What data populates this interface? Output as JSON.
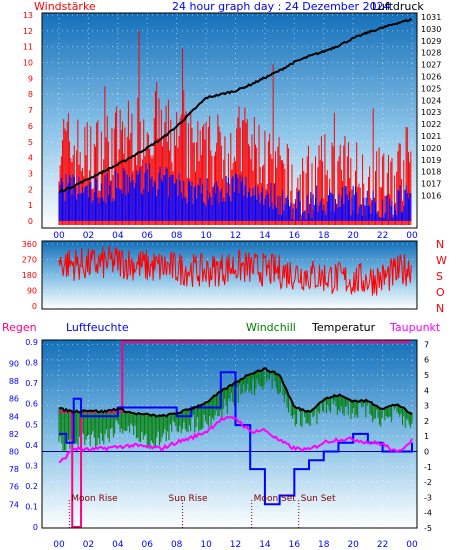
{
  "header": {
    "title": "24 hour graph day : 24 Dezember 2024",
    "wind_label": "Windstärke",
    "pressure_label": "Luftdruck"
  },
  "colors": {
    "wind": "#ff0000",
    "gust": "#0000ff",
    "pressure": "#000000",
    "temperature": "#000000",
    "windchill": "#008000",
    "dewpoint": "#ff00ff",
    "humidity": "#0000ff",
    "rain": "#ff0080",
    "axis_left": "#ff0000",
    "axis_right": "#000000",
    "axis_bottom": "#0000ff"
  },
  "chart_data": [
    {
      "type": "line",
      "panel": "wind-pressure",
      "title": "24 hour graph day : 24 Dezember 2024",
      "x_ticks": [
        "00",
        "02",
        "04",
        "06",
        "08",
        "10",
        "12",
        "14",
        "16",
        "18",
        "20",
        "22",
        "00"
      ],
      "y_left_label": "Windstärke",
      "y_left_ticks": [
        0,
        1,
        2,
        3,
        4,
        5,
        6,
        7,
        8,
        9,
        10,
        11,
        12,
        13
      ],
      "y_right_label": "Luftdruck",
      "y_right_ticks": [
        1016,
        1017,
        1018,
        1019,
        1020,
        1021,
        1022,
        1023,
        1024,
        1025,
        1026,
        1027,
        1028,
        1029,
        1030,
        1031
      ],
      "series": [
        {
          "name": "Luftdruck",
          "values_x": [
            0,
            1,
            2,
            3,
            4,
            5,
            6,
            7,
            8,
            9,
            10,
            11,
            12,
            13,
            14,
            15,
            16,
            17,
            18,
            19,
            20,
            21,
            22,
            23,
            24
          ],
          "values": [
            1016.3,
            1016.8,
            1017.4,
            1018.0,
            1018.6,
            1019.3,
            1020.0,
            1020.8,
            1021.8,
            1023.0,
            1024.2,
            1024.5,
            1024.8,
            1025.3,
            1025.9,
            1026.5,
            1027.2,
            1027.7,
            1028.1,
            1028.6,
            1029.2,
            1029.7,
            1030.1,
            1030.5,
            1030.8
          ]
        },
        {
          "name": "Windstärke",
          "values_x": [
            0,
            2,
            4,
            6,
            8,
            10,
            12,
            14,
            16,
            18,
            20,
            22,
            24
          ],
          "values": [
            5,
            4,
            5,
            6,
            5,
            4,
            5,
            4,
            2,
            3,
            3,
            2,
            4
          ]
        }
      ]
    },
    {
      "type": "line",
      "panel": "wind-direction",
      "x_ticks": [
        "00",
        "02",
        "04",
        "06",
        "08",
        "10",
        "12",
        "14",
        "16",
        "18",
        "20",
        "22",
        "00"
      ],
      "y_left_ticks": [
        0,
        90,
        180,
        270,
        360
      ],
      "y_right_ticks": [
        "N",
        "W",
        "S",
        "O",
        "N"
      ],
      "series": [
        {
          "name": "Windrichtung",
          "values_x": [
            0,
            2,
            4,
            6,
            8,
            10,
            12,
            14,
            16,
            18,
            20,
            22,
            24
          ],
          "values": [
            250,
            240,
            260,
            230,
            220,
            200,
            230,
            210,
            190,
            170,
            150,
            160,
            230
          ]
        }
      ]
    },
    {
      "type": "line",
      "panel": "temperature-humidity",
      "legend": [
        "Regen",
        "Luftfeuchte",
        "Windchill",
        "Temperatur",
        "Taupunkt"
      ],
      "x_ticks": [
        "00",
        "02",
        "04",
        "06",
        "08",
        "10",
        "12",
        "14",
        "16",
        "18",
        "20",
        "22",
        "00"
      ],
      "y_rain_ticks": [
        "0",
        "0.1",
        "0.2",
        "0.3",
        "0.4",
        "0.5",
        "0.6",
        "0.7",
        "0.8",
        "0.9"
      ],
      "y_humidity_ticks": [
        74,
        76,
        78,
        80,
        82,
        84,
        86,
        88,
        90
      ],
      "y_temp_ticks": [
        7,
        6,
        5,
        4,
        3,
        2,
        1,
        0,
        -1,
        -2,
        -3,
        -4,
        -5
      ],
      "annotations": [
        {
          "label": "Moon Rise",
          "time": 0.7
        },
        {
          "label": "Sun Rise",
          "time": 8.4
        },
        {
          "label": "Moon Set",
          "time": 13.1
        },
        {
          "label": "Sun Set",
          "time": 16.3
        }
      ],
      "series": [
        {
          "name": "Temperatur",
          "values_x": [
            0,
            1,
            2,
            3,
            4,
            5,
            6,
            7,
            8,
            9,
            10,
            11,
            12,
            13,
            14,
            15,
            16,
            17,
            18,
            19,
            20,
            21,
            22,
            23,
            24
          ],
          "values": [
            2.8,
            2.6,
            2.7,
            2.6,
            2.8,
            2.5,
            2.4,
            2.3,
            2.5,
            2.8,
            3.2,
            3.9,
            4.5,
            5.1,
            5.4,
            5.0,
            2.9,
            2.6,
            3.4,
            3.7,
            3.3,
            3.3,
            2.8,
            3.1,
            2.4
          ]
        },
        {
          "name": "Windchill",
          "values_x": [
            0,
            1,
            2,
            3,
            4,
            5,
            6,
            7,
            8,
            9,
            10,
            11,
            12,
            13,
            14,
            15,
            16,
            17,
            18,
            19,
            20,
            21,
            22,
            23,
            24
          ],
          "values": [
            1.0,
            1.3,
            1.6,
            1.5,
            2.4,
            2.0,
            1.3,
            1.5,
            2.3,
            2.5,
            2.6,
            3.3,
            4.2,
            4.8,
            5.4,
            5.0,
            2.9,
            2.6,
            3.4,
            3.6,
            3.3,
            3.3,
            2.8,
            3.0,
            2.2
          ]
        },
        {
          "name": "Taupunkt",
          "values_x": [
            0,
            1,
            2,
            3,
            4,
            5,
            6,
            7,
            8,
            9,
            10,
            11,
            12,
            13,
            14,
            15,
            16,
            17,
            18,
            19,
            20,
            21,
            22,
            23,
            24
          ],
          "values": [
            -0.8,
            0.2,
            0.1,
            0.2,
            0.3,
            0.4,
            0.3,
            0.2,
            0.6,
            0.9,
            1.3,
            2.1,
            2.2,
            1.3,
            1.4,
            0.7,
            0.2,
            0.1,
            0.6,
            0.8,
            0.8,
            0.6,
            0.5,
            -0.1,
            0.8
          ]
        },
        {
          "name": "Luftfeuchte",
          "values_x": [
            0,
            0.5,
            1,
            1.5,
            2,
            4,
            6,
            8,
            9,
            10,
            11,
            12,
            13,
            14,
            15,
            16,
            17,
            18,
            19,
            20,
            21,
            22,
            23,
            24
          ],
          "values": [
            82,
            81,
            86,
            84,
            84,
            85,
            85,
            84,
            85,
            85,
            89,
            83,
            78,
            74,
            75,
            78,
            79,
            80,
            81,
            82,
            81,
            80,
            80,
            81
          ]
        },
        {
          "name": "Regen",
          "values_x": [
            0,
            0.3,
            0.9,
            1.5,
            3,
            4.2,
            4.3,
            6,
            12,
            18,
            23.9
          ],
          "values": [
            0.56,
            0.56,
            0,
            0.56,
            0.56,
            0.56,
            0.9,
            0.9,
            0.9,
            0.9,
            0.9
          ]
        }
      ]
    }
  ]
}
